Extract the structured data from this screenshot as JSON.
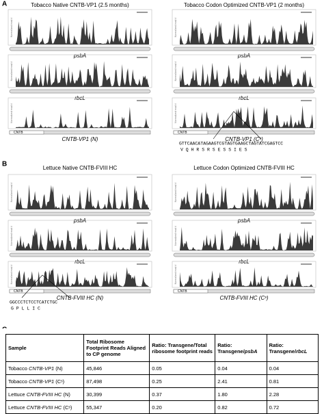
{
  "axis_label": "Normalized read #",
  "panel_a": {
    "label": "A",
    "left": {
      "title": "Tobacco Native CNTB-VP1 (2.5 months)",
      "tracks": [
        "psbA",
        "rbcL",
        "CNTB-VP1 (N)"
      ],
      "map_label": "CNTB"
    },
    "right": {
      "title": "Tobacco Codon Optimized CNTB-VP1 (2 months)",
      "tracks": [
        "psbA",
        "rbcL",
        "CNTB-VP1 (Cˢ)"
      ],
      "map_label": "CNTB",
      "dna": "GTTCAACATAGAAGTCGTAGTGAAGCTAGTATCGAGTCC",
      "protein": "V  Q  H  R  S  R  S  E  S  S  I  E  S"
    }
  },
  "panel_b": {
    "label": "B",
    "left": {
      "title": "Lettuce Native CNTB-FVIII HC",
      "tracks": [
        "psbA",
        "rbcL",
        "CNTB-FVIII HC (N)"
      ],
      "map_label": "CNTB",
      "dna": "GGCCCTCTCCTCATCTGC",
      "protein": "G  P  L  L  I  C"
    },
    "right": {
      "title": "Lettuce Codon Optimized CNTB-FVIII HC",
      "tracks": [
        "psbA",
        "rbcL",
        "CNTB-FVIII HC (Cˢ)"
      ],
      "map_label": "CNTB"
    }
  },
  "panel_c": {
    "label": "C",
    "table": {
      "header": [
        [
          "Sample"
        ],
        [
          "Total Ribosome Footprint Reads Aligned to CP genome"
        ],
        [
          "Ratio: Transgene/Total ribosome footprint reads"
        ],
        [
          "Ratio: Transgene/",
          "psbA"
        ],
        [
          "Ratio: Transgene/",
          "rbcL"
        ]
      ],
      "rows": [
        [
          [
            "Tobacco ",
            "CNTB-VP1",
            " (N)"
          ],
          "45,846",
          "0.05",
          "0.04",
          "0.04"
        ],
        [
          [
            "Tobacco ",
            "CNTB-VP1",
            " (Cˢ)"
          ],
          "87,498",
          "0.25",
          "2.41",
          "0.81"
        ],
        [
          [
            "Lettuce ",
            "CNTB-FVIII HC",
            " (N)"
          ],
          "30,399",
          "0.37",
          "1.80",
          "2.28"
        ],
        [
          [
            "Lettuce ",
            "CNTB-FVIII HC",
            " (Cˢ)"
          ],
          "55,347",
          "0.20",
          "0.82",
          "0.72"
        ]
      ]
    }
  }
}
